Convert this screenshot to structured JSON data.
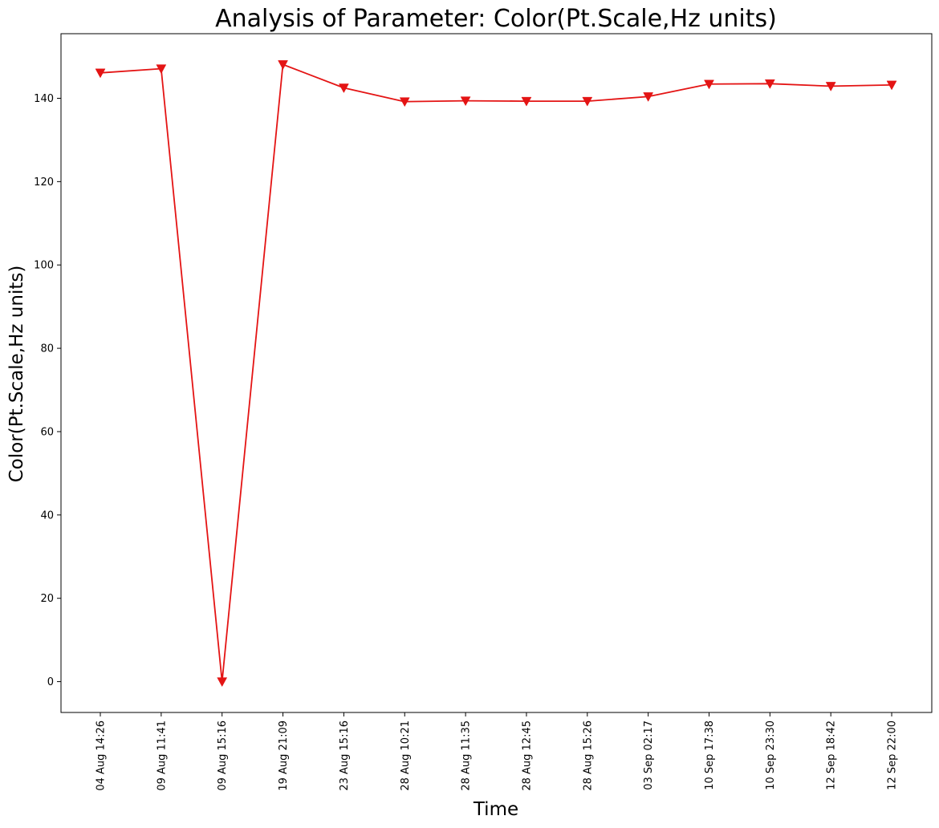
{
  "chart_data": {
    "type": "line",
    "title": "Analysis of Parameter: Color(Pt.Scale,Hz units)",
    "xlabel": "Time",
    "ylabel": "Color(Pt.Scale,Hz units)",
    "x": [
      "04 Aug 14:26",
      "09 Aug 11:41",
      "09 Aug 15:16",
      "19 Aug 21:09",
      "23 Aug 15:16",
      "28 Aug 10:21",
      "28 Aug 11:35",
      "28 Aug 12:45",
      "28 Aug 15:26",
      "03 Sep 02:17",
      "10 Sep 17:38",
      "10 Sep 23:30",
      "12 Sep 18:42",
      "12 Sep 22:00"
    ],
    "series": [
      {
        "values": [
          146.1,
          147.1,
          0,
          148.1,
          142.5,
          139.2,
          139.4,
          139.3,
          139.3,
          140.4,
          143.4,
          143.5,
          142.9,
          143.2
        ],
        "color": "#e41414",
        "marker": "triangle-down"
      }
    ],
    "yticks": [
      0,
      20,
      40,
      60,
      80,
      100,
      120,
      140
    ],
    "ylim": [
      -7.4,
      155.5
    ],
    "grid": false,
    "legend": "none"
  }
}
